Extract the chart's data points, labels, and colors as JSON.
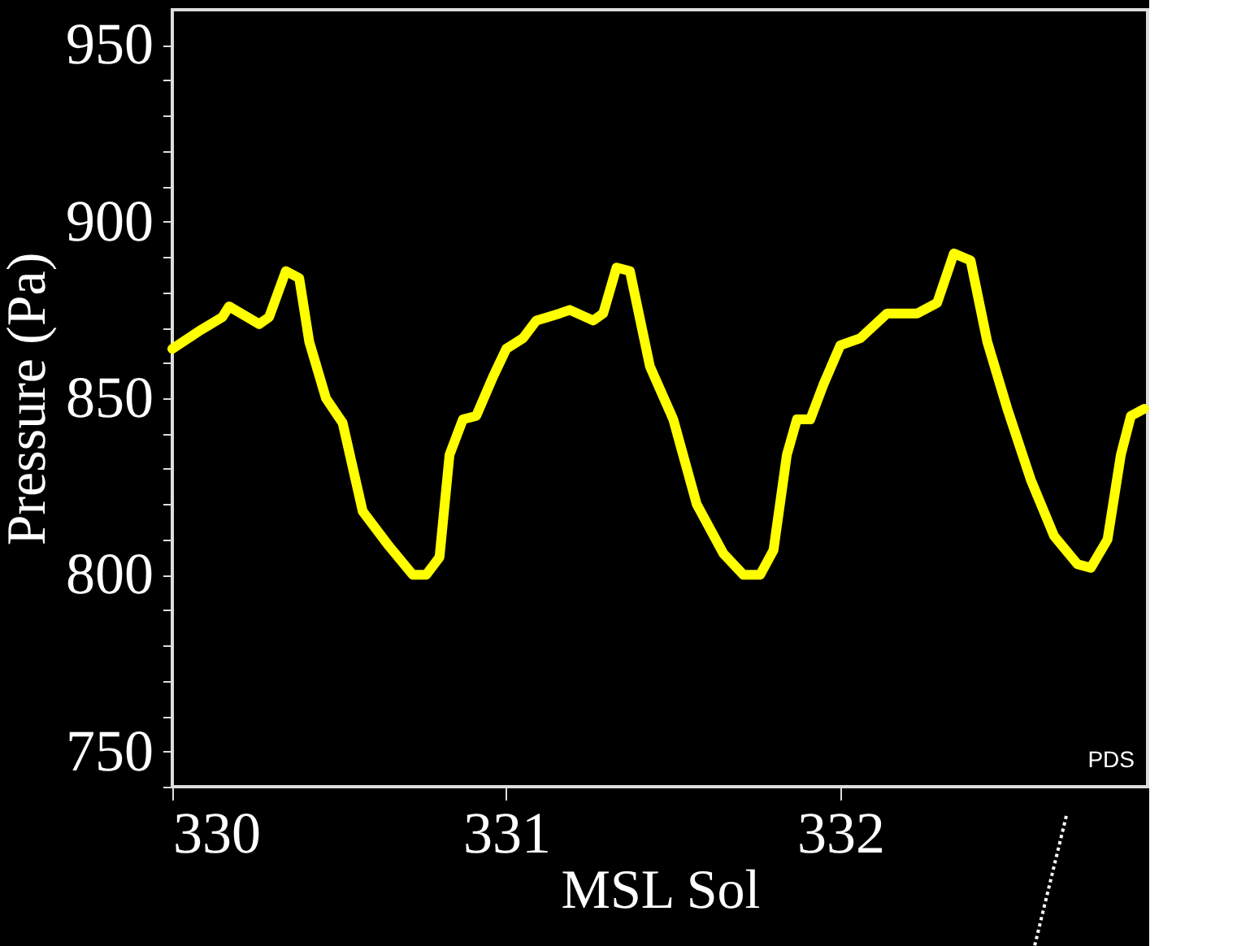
{
  "chart_data": {
    "type": "line",
    "xlabel": "MSL Sol",
    "ylabel": "Pressure (Pa)",
    "x": [
      330.0,
      330.08,
      330.15,
      330.17,
      330.26,
      330.29,
      330.34,
      330.38,
      330.41,
      330.46,
      330.51,
      330.57,
      330.65,
      330.72,
      330.76,
      330.8,
      330.83,
      330.87,
      330.91,
      330.96,
      331.0,
      331.05,
      331.09,
      331.16,
      331.19,
      331.26,
      331.29,
      331.33,
      331.37,
      331.43,
      331.5,
      331.57,
      331.65,
      331.71,
      331.76,
      331.8,
      331.84,
      331.87,
      331.91,
      331.95,
      332.0,
      332.06,
      332.14,
      332.23,
      332.29,
      332.34,
      332.39,
      332.44,
      332.5,
      332.57,
      332.64,
      332.71,
      332.75,
      332.8,
      332.84,
      332.87,
      332.91
    ],
    "series": [
      {
        "color": "#ffff00",
        "values": [
          864,
          869,
          873,
          876,
          871,
          873,
          886,
          884,
          866,
          850,
          843,
          818,
          808,
          800,
          800,
          805,
          834,
          844,
          845,
          856,
          864,
          867,
          872,
          874,
          875,
          872,
          874,
          887,
          886,
          859,
          844,
          820,
          806,
          800,
          800,
          807,
          834,
          844,
          844,
          854,
          865,
          867,
          874,
          874,
          877,
          891,
          889,
          866,
          847,
          827,
          811,
          803,
          802,
          810,
          834,
          845,
          847
        ]
      }
    ],
    "xlim": [
      330,
      332.92
    ],
    "xticks": [
      330,
      331,
      332
    ],
    "ylim": [
      740,
      960
    ],
    "yticks": [
      {
        "value": 740,
        "label": null
      },
      750,
      {
        "value": 760,
        "label": null
      },
      {
        "value": 770,
        "label": null
      },
      {
        "value": 780,
        "label": null
      },
      {
        "value": 790,
        "label": null
      },
      800,
      {
        "value": 810,
        "label": null
      },
      {
        "value": 820,
        "label": null
      },
      {
        "value": 830,
        "label": null
      },
      {
        "value": 840,
        "label": null
      },
      850,
      {
        "value": 860,
        "label": null
      },
      {
        "value": 870,
        "label": null
      },
      {
        "value": 880,
        "label": null
      },
      {
        "value": 890,
        "label": null
      },
      900,
      {
        "value": 910,
        "label": null
      },
      {
        "value": 920,
        "label": null
      },
      {
        "value": 930,
        "label": null
      },
      {
        "value": 940,
        "label": null
      },
      950
    ],
    "annotations": [
      "PDS"
    ],
    "grid": false,
    "marker": "none",
    "line_style": "solid"
  }
}
